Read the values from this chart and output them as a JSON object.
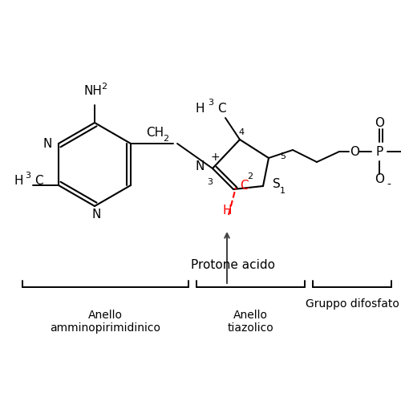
{
  "background_color": "#ffffff",
  "text_color": "#000000",
  "red_color": "#ff0000",
  "gray_color": "#444444",
  "protone_text": "Protone acido",
  "label1": "Anello\namminopirimidinico",
  "label2": "Anello\ntiazolico",
  "label3": "Gruppo difosfato"
}
